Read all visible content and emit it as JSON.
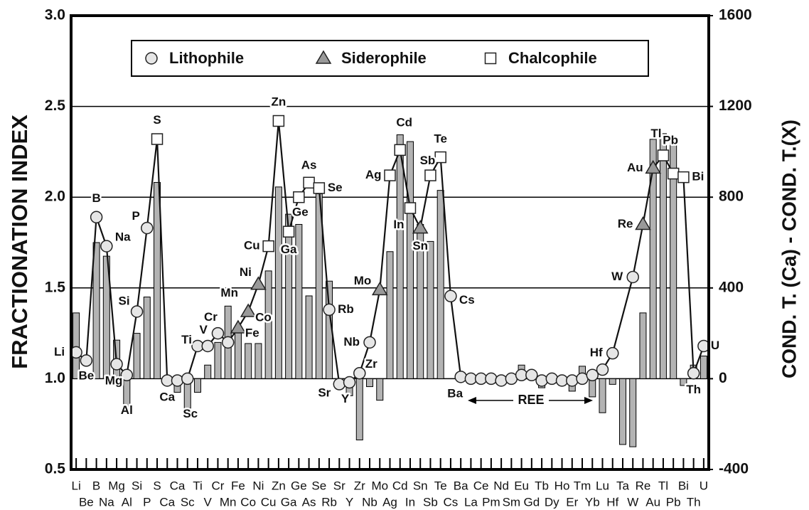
{
  "chart_data": {
    "type": "bar_line",
    "ylabel": "FRACTIONATION INDEX",
    "y2label": "COND. T. (Ca) - COND. T.(X)",
    "annotation": "REE",
    "categories": [
      "Li",
      "Be",
      "B",
      "Na",
      "Mg",
      "Al",
      "Si",
      "P",
      "S",
      "Ca",
      "Ca",
      "Sc",
      "Ti",
      "V",
      "Cr",
      "Mn",
      "Fe",
      "Co",
      "Ni",
      "Cu",
      "Zn",
      "Ga",
      "Ge",
      "As",
      "Se",
      "Rb",
      "Sr",
      "Y",
      "Zr",
      "Nb",
      "Mo",
      "Ag",
      "Cd",
      "In",
      "Sn",
      "Sb",
      "Te",
      "Cs",
      "Ba",
      "La",
      "Ce",
      "Pm",
      "Nd",
      "Sm",
      "Eu",
      "Gd",
      "Tb",
      "Dy",
      "Ho",
      "Er",
      "Tm",
      "Yb",
      "Lu",
      "Hf",
      "Ta",
      "W",
      "Re",
      "Au",
      "Tl",
      "Pb",
      "Bi",
      "Th",
      "U"
    ],
    "ylim": [
      0.5,
      3.0
    ],
    "yticks": [
      0.5,
      {
        "value": 1.0,
        "label": "1.0"
      },
      1.5,
      {
        "value": 2.0,
        "label": "2.0"
      },
      2.5,
      {
        "value": 3.0,
        "label": "3.0"
      }
    ],
    "y2lim": [
      -400,
      1600
    ],
    "y2ticks": [
      -400,
      0,
      400,
      800,
      1200,
      1600
    ],
    "grid": true,
    "legend": "top",
    "bars": {
      "axis": "y2",
      "color": "#b3b3b3",
      "values": [
        290,
        0,
        600,
        540,
        170,
        -140,
        200,
        360,
        865,
        0,
        -60,
        -130,
        -60,
        60,
        160,
        320,
        225,
        155,
        155,
        475,
        845,
        725,
        680,
        365,
        815,
        430,
        0,
        -75,
        -270,
        -35,
        -95,
        560,
        1075,
        1045,
        680,
        605,
        830,
        0,
        0,
        0,
        0,
        0,
        5,
        0,
        60,
        30,
        -40,
        -20,
        -30,
        -55,
        55,
        -80,
        -150,
        -25,
        -290,
        -300,
        290,
        1055,
        1080,
        1040,
        -30,
        60,
        100
      ]
    },
    "series": [
      {
        "name": "Lithophile",
        "marker": "circle",
        "color": "#e6e6e6",
        "values": [
          1.145,
          1.1,
          1.89,
          1.73,
          1.08,
          1.02,
          1.37,
          1.83,
          null,
          0.99,
          0.99,
          1.0,
          1.18,
          1.18,
          1.25,
          1.2,
          null,
          null,
          null,
          null,
          null,
          null,
          null,
          null,
          null,
          1.38,
          0.97,
          0.98,
          1.03,
          1.2,
          null,
          null,
          null,
          null,
          null,
          null,
          null,
          1.455,
          1.01,
          1.0,
          1.0,
          1.0,
          0.99,
          1.0,
          1.02,
          1.02,
          0.99,
          1.0,
          0.99,
          0.99,
          1.0,
          1.02,
          1.05,
          1.14,
          null,
          1.56,
          null,
          null,
          null,
          null,
          null,
          1.03,
          1.18
        ]
      },
      {
        "name": "Siderophile",
        "marker": "triangle",
        "color": "#999999",
        "values": [
          null,
          null,
          null,
          null,
          null,
          null,
          null,
          null,
          null,
          null,
          null,
          null,
          null,
          null,
          null,
          null,
          1.28,
          1.37,
          1.52,
          null,
          null,
          null,
          null,
          null,
          null,
          null,
          null,
          null,
          null,
          null,
          1.49,
          null,
          null,
          null,
          1.83,
          null,
          null,
          null,
          null,
          null,
          null,
          null,
          null,
          null,
          null,
          null,
          null,
          null,
          null,
          null,
          null,
          null,
          null,
          null,
          null,
          null,
          1.85,
          2.16,
          null,
          null,
          null,
          null,
          null
        ]
      },
      {
        "name": "Chalcophile",
        "marker": "square",
        "color": "#ffffff",
        "values": [
          null,
          null,
          null,
          null,
          null,
          null,
          null,
          null,
          2.32,
          null,
          null,
          null,
          null,
          null,
          null,
          null,
          null,
          null,
          null,
          1.73,
          2.42,
          1.81,
          2.0,
          2.08,
          2.05,
          null,
          null,
          null,
          null,
          null,
          null,
          2.12,
          2.26,
          1.94,
          null,
          2.12,
          2.22,
          null,
          null,
          null,
          null,
          null,
          null,
          null,
          null,
          null,
          null,
          null,
          null,
          null,
          null,
          null,
          null,
          null,
          null,
          null,
          null,
          null,
          2.23,
          2.13,
          2.11,
          null,
          null
        ]
      }
    ]
  }
}
